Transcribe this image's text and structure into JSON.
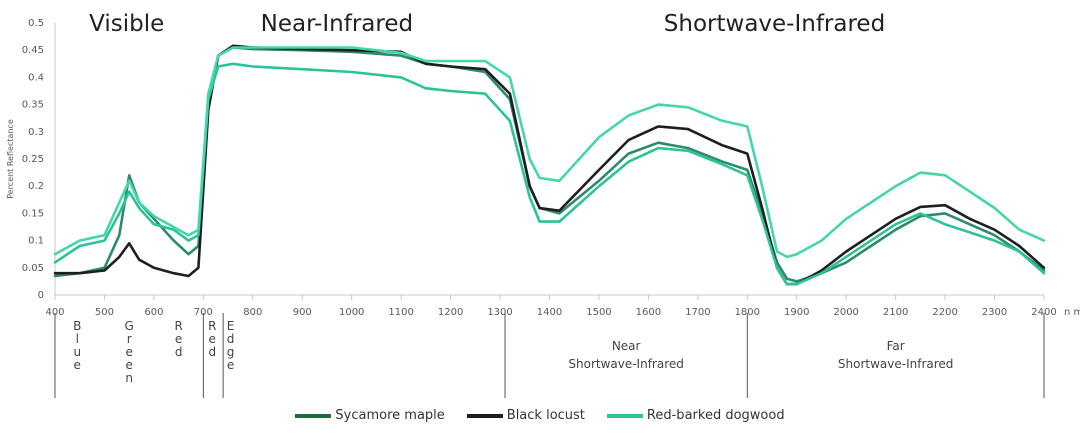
{
  "chart_data": {
    "type": "line",
    "title": "",
    "xlabel": "",
    "ylabel": "Percent Reflectance",
    "x_unit": "n m",
    "xlim": [
      400,
      2400
    ],
    "ylim": [
      0,
      0.5
    ],
    "x_ticks": [
      400,
      500,
      600,
      700,
      800,
      900,
      1000,
      1100,
      1200,
      1300,
      1400,
      1500,
      1600,
      1700,
      1800,
      1900,
      2000,
      2100,
      2200,
      2300,
      2400
    ],
    "y_ticks": [
      "0",
      "0.05",
      "0.1",
      "0.15",
      "0.2",
      "0.25",
      "0.3",
      "0.35",
      "0.4",
      "0.45",
      "0.5"
    ],
    "grid": false,
    "legend_position": "bottom",
    "regions": [
      {
        "label": "Visible",
        "center": 545
      },
      {
        "label": "Near-Infrared",
        "center": 970
      },
      {
        "label": "Shortwave-Infrared",
        "center": 1855
      }
    ],
    "bands": [
      {
        "label": "Blue",
        "center": 445,
        "vertical": true
      },
      {
        "label": "Green",
        "center": 550,
        "vertical": true
      },
      {
        "label": "Red",
        "center": 650,
        "vertical": true
      },
      {
        "label": "Red",
        "center": 718,
        "vertical": true
      },
      {
        "label": "Edge",
        "center": 755,
        "vertical": true
      },
      {
        "label": "Near",
        "line2": "Shortwave-Infrared",
        "center": 1555,
        "vertical": false
      },
      {
        "label": "Far",
        "line2": "Shortwave-Infrared",
        "center": 2100,
        "vertical": false
      }
    ],
    "band_dividers": [
      400,
      700,
      740,
      1310,
      1800,
      2400
    ],
    "series": [
      {
        "name": "Sycamore maple",
        "color": "#2e8b67",
        "points": [
          [
            400,
            0.035
          ],
          [
            450,
            0.04
          ],
          [
            500,
            0.05
          ],
          [
            530,
            0.11
          ],
          [
            550,
            0.22
          ],
          [
            570,
            0.17
          ],
          [
            600,
            0.14
          ],
          [
            640,
            0.1
          ],
          [
            670,
            0.075
          ],
          [
            690,
            0.09
          ],
          [
            710,
            0.35
          ],
          [
            730,
            0.44
          ],
          [
            760,
            0.455
          ],
          [
            800,
            0.452
          ],
          [
            900,
            0.45
          ],
          [
            1000,
            0.447
          ],
          [
            1100,
            0.44
          ],
          [
            1150,
            0.425
          ],
          [
            1200,
            0.42
          ],
          [
            1270,
            0.41
          ],
          [
            1320,
            0.36
          ],
          [
            1360,
            0.2
          ],
          [
            1380,
            0.16
          ],
          [
            1420,
            0.15
          ],
          [
            1500,
            0.21
          ],
          [
            1560,
            0.26
          ],
          [
            1620,
            0.28
          ],
          [
            1680,
            0.27
          ],
          [
            1750,
            0.245
          ],
          [
            1800,
            0.23
          ],
          [
            1830,
            0.15
          ],
          [
            1860,
            0.06
          ],
          [
            1880,
            0.03
          ],
          [
            1900,
            0.025
          ],
          [
            1950,
            0.04
          ],
          [
            2000,
            0.06
          ],
          [
            2050,
            0.09
          ],
          [
            2100,
            0.12
          ],
          [
            2150,
            0.145
          ],
          [
            2200,
            0.15
          ],
          [
            2250,
            0.13
          ],
          [
            2300,
            0.11
          ],
          [
            2350,
            0.08
          ],
          [
            2400,
            0.045
          ]
        ]
      },
      {
        "name": "Black locust",
        "color": "#1f1f1f",
        "points": [
          [
            400,
            0.04
          ],
          [
            450,
            0.04
          ],
          [
            500,
            0.045
          ],
          [
            530,
            0.07
          ],
          [
            550,
            0.095
          ],
          [
            570,
            0.065
          ],
          [
            600,
            0.05
          ],
          [
            640,
            0.04
          ],
          [
            670,
            0.035
          ],
          [
            690,
            0.05
          ],
          [
            710,
            0.34
          ],
          [
            730,
            0.44
          ],
          [
            760,
            0.458
          ],
          [
            800,
            0.455
          ],
          [
            900,
            0.452
          ],
          [
            1000,
            0.45
          ],
          [
            1100,
            0.447
          ],
          [
            1150,
            0.425
          ],
          [
            1200,
            0.42
          ],
          [
            1270,
            0.415
          ],
          [
            1320,
            0.37
          ],
          [
            1360,
            0.2
          ],
          [
            1380,
            0.16
          ],
          [
            1420,
            0.155
          ],
          [
            1500,
            0.23
          ],
          [
            1560,
            0.285
          ],
          [
            1620,
            0.31
          ],
          [
            1680,
            0.305
          ],
          [
            1750,
            0.275
          ],
          [
            1800,
            0.26
          ],
          [
            1830,
            0.16
          ],
          [
            1860,
            0.05
          ],
          [
            1880,
            0.02
          ],
          [
            1900,
            0.02
          ],
          [
            1950,
            0.045
          ],
          [
            2000,
            0.08
          ],
          [
            2050,
            0.11
          ],
          [
            2100,
            0.14
          ],
          [
            2150,
            0.162
          ],
          [
            2200,
            0.165
          ],
          [
            2250,
            0.14
          ],
          [
            2300,
            0.12
          ],
          [
            2350,
            0.09
          ],
          [
            2400,
            0.05
          ]
        ]
      },
      {
        "name": "Red-barked dogwood",
        "color": "#2cc29a",
        "points": [
          [
            400,
            0.06
          ],
          [
            450,
            0.09
          ],
          [
            500,
            0.1
          ],
          [
            530,
            0.15
          ],
          [
            550,
            0.19
          ],
          [
            570,
            0.16
          ],
          [
            600,
            0.13
          ],
          [
            640,
            0.12
          ],
          [
            670,
            0.1
          ],
          [
            690,
            0.11
          ],
          [
            710,
            0.36
          ],
          [
            730,
            0.42
          ],
          [
            760,
            0.425
          ],
          [
            800,
            0.42
          ],
          [
            900,
            0.415
          ],
          [
            1000,
            0.41
          ],
          [
            1100,
            0.4
          ],
          [
            1150,
            0.38
          ],
          [
            1200,
            0.375
          ],
          [
            1270,
            0.37
          ],
          [
            1320,
            0.32
          ],
          [
            1360,
            0.18
          ],
          [
            1380,
            0.135
          ],
          [
            1420,
            0.135
          ],
          [
            1500,
            0.2
          ],
          [
            1560,
            0.245
          ],
          [
            1620,
            0.27
          ],
          [
            1680,
            0.265
          ],
          [
            1750,
            0.24
          ],
          [
            1800,
            0.22
          ],
          [
            1830,
            0.14
          ],
          [
            1860,
            0.05
          ],
          [
            1880,
            0.02
          ],
          [
            1900,
            0.02
          ],
          [
            1950,
            0.04
          ],
          [
            2000,
            0.07
          ],
          [
            2050,
            0.1
          ],
          [
            2100,
            0.13
          ],
          [
            2150,
            0.15
          ],
          [
            2200,
            0.13
          ],
          [
            2250,
            0.115
          ],
          [
            2300,
            0.1
          ],
          [
            2350,
            0.08
          ],
          [
            2400,
            0.04
          ]
        ]
      },
      {
        "name": "Red-barked dogwood",
        "color": "#45d6ae",
        "points": [
          [
            400,
            0.075
          ],
          [
            450,
            0.1
          ],
          [
            500,
            0.11
          ],
          [
            530,
            0.17
          ],
          [
            550,
            0.21
          ],
          [
            570,
            0.17
          ],
          [
            600,
            0.145
          ],
          [
            640,
            0.125
          ],
          [
            670,
            0.11
          ],
          [
            690,
            0.12
          ],
          [
            710,
            0.37
          ],
          [
            730,
            0.44
          ],
          [
            760,
            0.455
          ],
          [
            800,
            0.455
          ],
          [
            900,
            0.455
          ],
          [
            1000,
            0.455
          ],
          [
            1100,
            0.445
          ],
          [
            1150,
            0.43
          ],
          [
            1200,
            0.43
          ],
          [
            1270,
            0.43
          ],
          [
            1320,
            0.4
          ],
          [
            1360,
            0.25
          ],
          [
            1380,
            0.215
          ],
          [
            1420,
            0.21
          ],
          [
            1500,
            0.29
          ],
          [
            1560,
            0.33
          ],
          [
            1620,
            0.35
          ],
          [
            1680,
            0.345
          ],
          [
            1750,
            0.32
          ],
          [
            1800,
            0.31
          ],
          [
            1830,
            0.2
          ],
          [
            1860,
            0.08
          ],
          [
            1880,
            0.07
          ],
          [
            1900,
            0.075
          ],
          [
            1950,
            0.1
          ],
          [
            2000,
            0.14
          ],
          [
            2050,
            0.17
          ],
          [
            2100,
            0.2
          ],
          [
            2150,
            0.225
          ],
          [
            2200,
            0.22
          ],
          [
            2250,
            0.19
          ],
          [
            2300,
            0.16
          ],
          [
            2350,
            0.12
          ],
          [
            2400,
            0.1
          ]
        ]
      }
    ]
  },
  "legend": [
    {
      "label": "Sycamore maple",
      "color": "#1f6b3a"
    },
    {
      "label": "Black locust",
      "color": "#1f1f1f"
    },
    {
      "label": "Red-barked dogwood",
      "color": "#2cc29a"
    }
  ]
}
